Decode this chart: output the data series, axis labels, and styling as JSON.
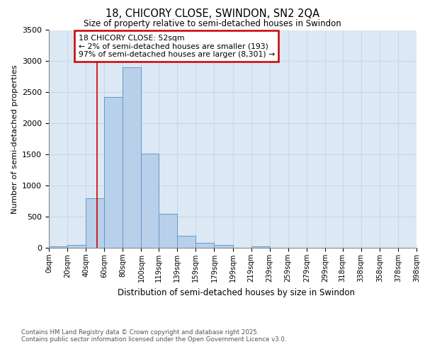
{
  "title1": "18, CHICORY CLOSE, SWINDON, SN2 2QA",
  "title2": "Size of property relative to semi-detached houses in Swindon",
  "xlabel": "Distribution of semi-detached houses by size in Swindon",
  "ylabel": "Number of semi-detached properties",
  "bin_labels": [
    "0sqm",
    "20sqm",
    "40sqm",
    "60sqm",
    "80sqm",
    "100sqm",
    "119sqm",
    "139sqm",
    "159sqm",
    "179sqm",
    "199sqm",
    "219sqm",
    "239sqm",
    "259sqm",
    "279sqm",
    "299sqm",
    "318sqm",
    "338sqm",
    "358sqm",
    "378sqm",
    "398sqm"
  ],
  "bar_values": [
    20,
    50,
    800,
    2420,
    2900,
    1510,
    550,
    190,
    85,
    40,
    5,
    20,
    5,
    3,
    2,
    2,
    0,
    0,
    0,
    0
  ],
  "bin_edges": [
    0,
    20,
    40,
    60,
    80,
    100,
    119,
    139,
    159,
    179,
    199,
    219,
    239,
    259,
    279,
    299,
    318,
    338,
    358,
    378,
    398
  ],
  "bar_color": "#b8d0ea",
  "bar_edge_color": "#6699cc",
  "property_size": 52,
  "annotation_line1": "18 CHICORY CLOSE: 52sqm",
  "annotation_line2": "← 2% of semi-detached houses are smaller (193)",
  "annotation_line3": "97% of semi-detached houses are larger (8,301) →",
  "annotation_box_color": "#ffffff",
  "annotation_box_edge_color": "#cc0000",
  "vline_color": "#cc0000",
  "grid_color": "#c8d8e8",
  "background_color": "#dce8f4",
  "footer_text": "Contains HM Land Registry data © Crown copyright and database right 2025.\nContains public sector information licensed under the Open Government Licence v3.0.",
  "ylim": [
    0,
    3500
  ],
  "yticks": [
    0,
    500,
    1000,
    1500,
    2000,
    2500,
    3000,
    3500
  ]
}
